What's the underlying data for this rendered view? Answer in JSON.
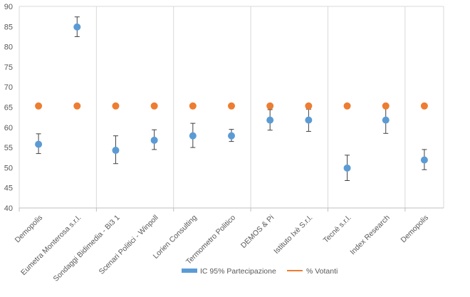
{
  "chart_data": {
    "type": "scatter",
    "categories": [
      "Demopolis",
      "Eumetra Monterosa s.r.l.",
      "Sondaggi Bidimedia - Bi3 1",
      "Scenari Politici - Winpoll",
      "Lorien Consulting",
      "Termometro Politico",
      "DEMOS & Pi",
      "Istituto Ixè S.r.l.",
      "Tecnè s.r.l.",
      "Index Research",
      "Demopolis"
    ],
    "ylim": [
      40,
      90
    ],
    "yticks": [
      40,
      45,
      50,
      55,
      60,
      65,
      70,
      75,
      80,
      85,
      90
    ],
    "grid": "vertical",
    "legend_position": "bottom",
    "series": [
      {
        "name": "IC 95% Partecipazione",
        "color": "#5b9bd5",
        "values": [
          55.8,
          84.9,
          54.3,
          56.8,
          57.9,
          57.9,
          61.8,
          61.8,
          49.9,
          61.8,
          51.9
        ],
        "error_low": [
          53.5,
          82.5,
          51.0,
          54.5,
          55.0,
          56.5,
          59.3,
          59.0,
          46.8,
          58.5,
          49.5
        ],
        "error_high": [
          58.4,
          87.4,
          57.9,
          59.4,
          61.0,
          59.5,
          64.4,
          64.5,
          53.1,
          64.9,
          54.5
        ]
      },
      {
        "name": "% Votanti",
        "color": "#ed7d31",
        "values": [
          65.3,
          65.3,
          65.3,
          65.3,
          65.3,
          65.3,
          65.3,
          65.3,
          65.3,
          65.3,
          65.3
        ]
      }
    ]
  }
}
